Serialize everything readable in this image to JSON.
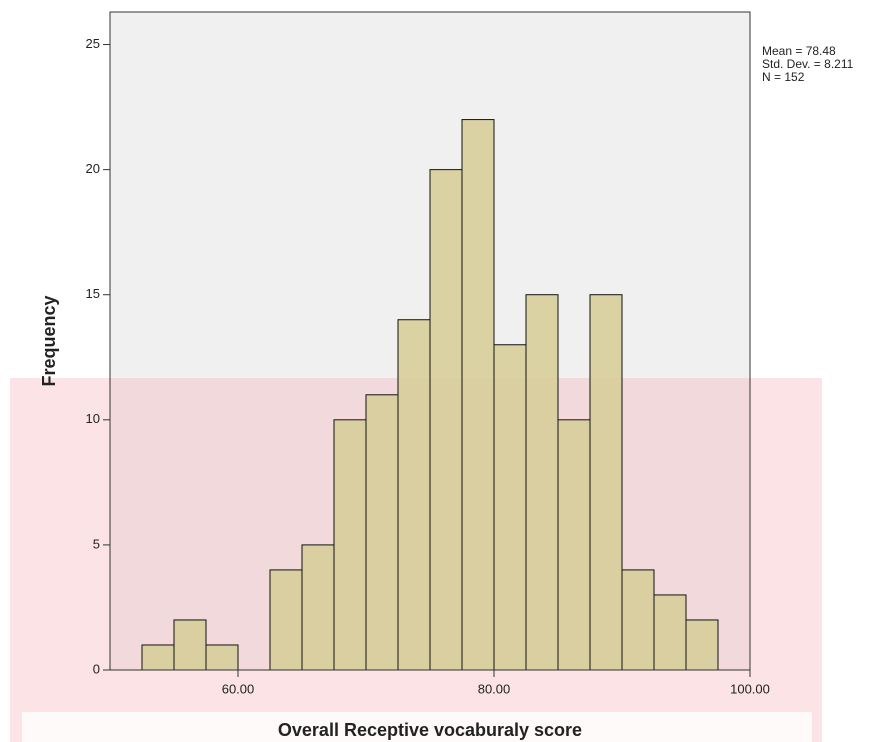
{
  "chart_data": {
    "type": "histogram",
    "xlabel": "Overall Receptive vocaburaly score",
    "ylabel": "Frequency",
    "annotations": [
      "Mean = 78.48",
      "Std. Dev. = 8.211",
      "N = 152"
    ],
    "bins": [
      52.5,
      55,
      57.5,
      60,
      62.5,
      65,
      67.5,
      70,
      72.5,
      75,
      77.5,
      80,
      82.5,
      85,
      87.5,
      90,
      92.5,
      95,
      97.5
    ],
    "values": [
      1,
      2,
      1,
      0,
      4,
      5,
      10,
      11,
      14,
      20,
      22,
      13,
      15,
      10,
      15,
      4,
      3,
      2
    ],
    "color": "#d6cc95",
    "xlim": [
      50,
      100
    ],
    "xticks": [
      {
        "value": 60,
        "label": "60.00"
      },
      {
        "value": 80,
        "label": "80.00"
      },
      {
        "value": 100,
        "label": "100.00"
      }
    ],
    "ylim": [
      0,
      26.3
    ],
    "yticks": [
      0,
      5,
      10,
      15,
      20,
      25
    ]
  }
}
